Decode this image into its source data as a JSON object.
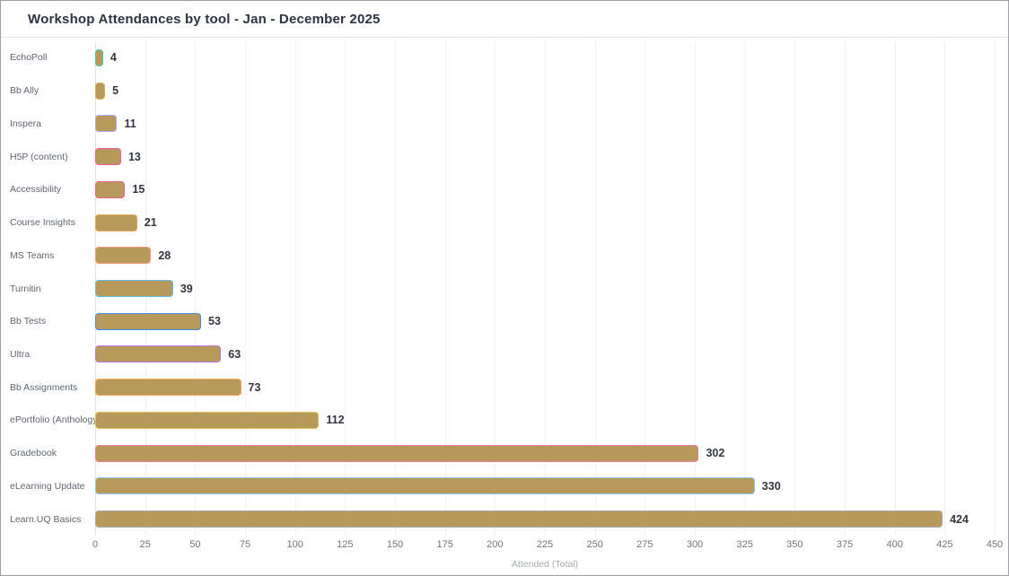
{
  "header": {
    "title": "Workshop Attendances by tool - Jan - December 2025"
  },
  "chart_data": {
    "type": "bar",
    "orientation": "horizontal",
    "title": "Workshop Attendances by tool - Jan - December 2025",
    "categories": [
      "EchoPoll",
      "Bb Ally",
      "Inspera",
      "H5P (content)",
      "Accessibility",
      "Course Insights",
      "MS Teams",
      "Turnitin",
      "Bb Tests",
      "Ultra",
      "Bb Assignments",
      "ePortfolio (Anthology",
      "Gradebook",
      "eLearning Update",
      "Learn.UQ Basics"
    ],
    "values": [
      4,
      5,
      11,
      13,
      15,
      21,
      28,
      39,
      53,
      63,
      73,
      112,
      302,
      330,
      424
    ],
    "bar_fill_color": "#b7995c",
    "bar_border_colors": [
      "#3fc79e",
      "#d8b054",
      "#b3a7f0",
      "#f25a9e",
      "#f06087",
      "#dca94e",
      "#f59c78",
      "#62bbee",
      "#4488e8",
      "#bd77e0",
      "#f5a94e",
      "#e2c050",
      "#ee7f9b",
      "#90c8f0",
      "#a7abb3"
    ],
    "xlabel": "Attended (Total)",
    "ylabel": "",
    "xlim": [
      0,
      450
    ],
    "x_ticks": [
      0,
      25,
      50,
      75,
      100,
      125,
      150,
      175,
      200,
      225,
      250,
      275,
      300,
      325,
      350,
      375,
      400,
      425,
      450
    ],
    "grid": "vertical-light",
    "value_labels": "end-of-bar",
    "legend": "none"
  },
  "colors": {
    "value_label": "#32363f",
    "category_label": "#5f6570",
    "tick_label": "#70757d",
    "axis_label": "#a6aab0",
    "gridline": "#f2f2f3",
    "frame_border": "#9e9ea4"
  }
}
